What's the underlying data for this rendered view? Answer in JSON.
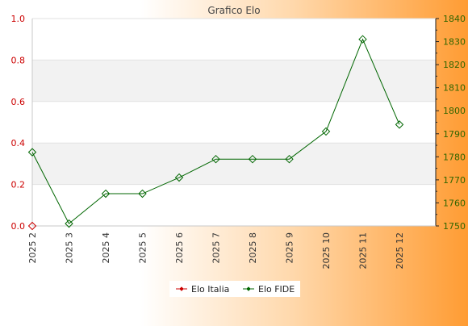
{
  "chart_data": {
    "type": "line",
    "title": "Grafico Elo",
    "categories": [
      "2025 2",
      "2025 3",
      "2025 4",
      "2025 5",
      "2025 6",
      "2025 7",
      "2025 8",
      "2025 9",
      "2025 10",
      "2025 11",
      "2025 12"
    ],
    "series": [
      {
        "name": "Elo Italia",
        "axis": "left",
        "color": "#cc0000",
        "values": [
          0,
          null,
          null,
          null,
          null,
          null,
          null,
          null,
          null,
          null,
          null
        ]
      },
      {
        "name": "Elo FIDE",
        "axis": "right",
        "color": "#006600",
        "values": [
          1782,
          1751,
          1764,
          1764,
          1771,
          1779,
          1779,
          1779,
          1791,
          1831,
          1794
        ]
      }
    ],
    "y_left": {
      "min": 0,
      "max": 1,
      "ticks": [
        "0.0",
        "0.2",
        "0.4",
        "0.6",
        "0.8",
        "1.0"
      ],
      "tick_values": [
        0,
        0.2,
        0.4,
        0.6,
        0.8,
        1.0
      ],
      "color": "#cc0000"
    },
    "y_right": {
      "min": 1750,
      "max": 1840,
      "ticks": [
        "1750",
        "1760",
        "1770",
        "1780",
        "1790",
        "1800",
        "1810",
        "1820",
        "1830",
        "1840"
      ],
      "tick_values": [
        1750,
        1760,
        1770,
        1780,
        1790,
        1800,
        1810,
        1820,
        1830,
        1840
      ],
      "color": "#336600"
    },
    "legend_position": "bottom-center",
    "grid": "horizontal bands"
  }
}
